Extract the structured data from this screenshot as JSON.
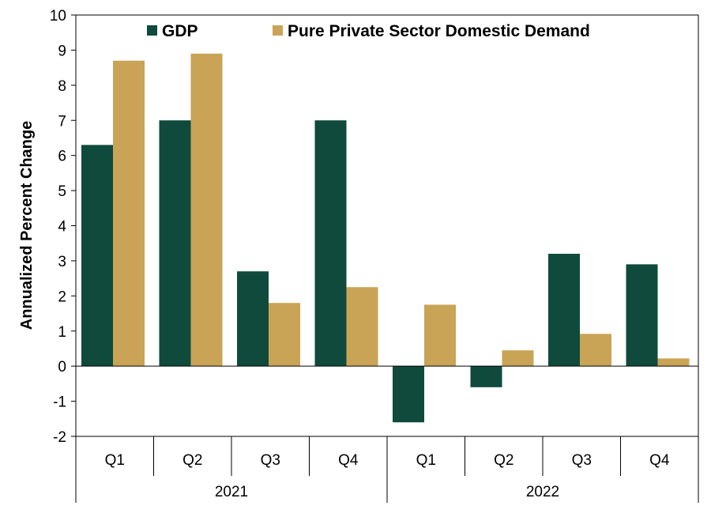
{
  "chart_data": {
    "type": "bar",
    "ylabel": "Annualized Percent Change",
    "ylim": [
      -2,
      10
    ],
    "yticks": [
      -2,
      -1,
      0,
      1,
      2,
      3,
      4,
      5,
      6,
      7,
      8,
      9,
      10
    ],
    "grid": false,
    "legend_position": "top",
    "categories": [
      "Q1",
      "Q2",
      "Q3",
      "Q4",
      "Q1",
      "Q2",
      "Q3",
      "Q4"
    ],
    "groups": [
      {
        "label": "2021",
        "span": 4
      },
      {
        "label": "2022",
        "span": 4
      }
    ],
    "series": [
      {
        "name": "GDP",
        "color": "#0f4a3c",
        "values": [
          6.3,
          7.0,
          2.7,
          7.0,
          -1.6,
          -0.6,
          3.2,
          2.9
        ]
      },
      {
        "name": "Pure Private Sector Domestic Demand",
        "color": "#c9a456",
        "values": [
          8.7,
          8.9,
          1.8,
          2.25,
          1.75,
          0.45,
          0.92,
          0.22
        ]
      }
    ]
  }
}
